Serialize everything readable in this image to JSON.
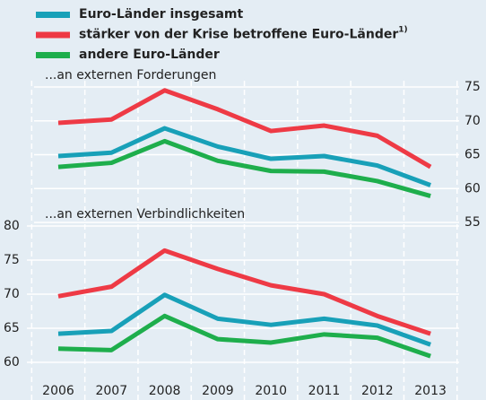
{
  "chart_data": [
    {
      "type": "line",
      "title": "...an externen Forderungen",
      "series": [
        {
          "name": "Euro-Länder insgesamt",
          "color": "#18a0b8",
          "values": [
            64.8,
            65.3,
            68.9,
            66.2,
            64.4,
            64.8,
            63.4,
            60.5
          ]
        },
        {
          "name": "stärker von der Krise betroffene Euro-Länder",
          "footnote_mark": "1)",
          "color": "#ee3a45",
          "values": [
            69.7,
            70.2,
            74.5,
            71.7,
            68.5,
            69.3,
            67.8,
            63.2
          ]
        },
        {
          "name": "andere Euro-Länder",
          "color": "#1eae4c",
          "values": [
            63.2,
            63.8,
            67.0,
            64.1,
            62.6,
            62.5,
            61.1,
            58.9
          ]
        }
      ],
      "ylim": [
        55,
        75
      ],
      "yticks": [
        55,
        60,
        65,
        70,
        75
      ],
      "grid": true,
      "axis_side": "right"
    },
    {
      "type": "line",
      "title": "...an externen Verbindlichkeiten",
      "categories": [
        "2006",
        "2007",
        "2008",
        "2009",
        "2010",
        "2011",
        "2012",
        "2013"
      ],
      "series": [
        {
          "values": [
            64.2,
            64.6,
            69.9,
            66.4,
            65.5,
            66.4,
            65.4,
            62.6
          ]
        },
        {
          "values": [
            69.7,
            71.1,
            76.4,
            73.7,
            71.3,
            70.0,
            66.8,
            64.2
          ]
        },
        {
          "values": [
            62.0,
            61.8,
            66.8,
            63.4,
            62.9,
            64.1,
            63.6,
            60.9
          ]
        }
      ],
      "ylim": [
        60,
        80
      ],
      "yticks": [
        60,
        65,
        70,
        75,
        80
      ],
      "grid": true,
      "axis_side": "left"
    }
  ]
}
